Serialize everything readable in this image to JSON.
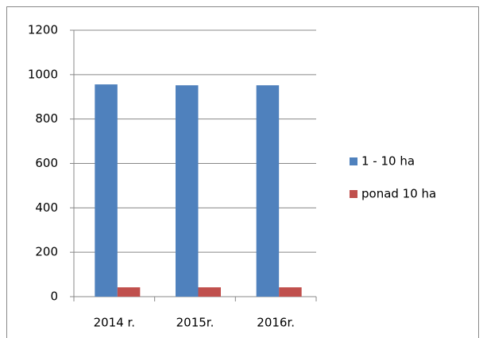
{
  "chart_data": {
    "type": "bar",
    "categories": [
      "2014 r.",
      "2015r.",
      "2016r."
    ],
    "series": [
      {
        "name": "1 - 10 ha",
        "color": "#4f81bd",
        "values": [
          956,
          952,
          952
        ]
      },
      {
        "name": "ponad 10 ha",
        "color": "#c0504d",
        "values": [
          42,
          42,
          42
        ]
      }
    ],
    "ylim": [
      0,
      1200
    ],
    "yticks": [
      0,
      200,
      400,
      600,
      800,
      1000,
      1200
    ],
    "grid": true,
    "legend": "right"
  }
}
